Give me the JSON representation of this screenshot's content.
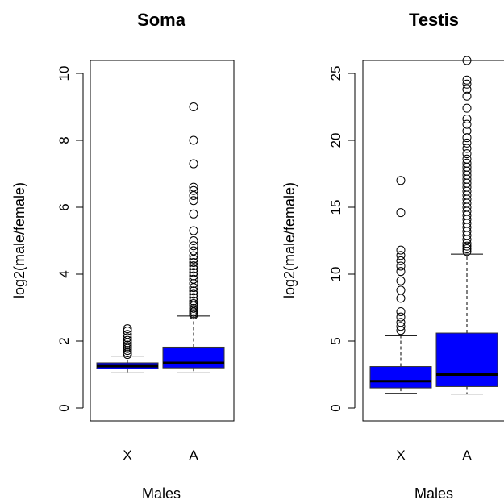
{
  "chart_data": [
    {
      "type": "boxplot",
      "title": "Soma",
      "xlabel": "Males",
      "ylabel": "log2(male/female)",
      "ylim": [
        0,
        10
      ],
      "yticks": [
        0,
        2,
        4,
        6,
        8,
        10
      ],
      "categories": [
        "X",
        "A"
      ],
      "boxes": [
        {
          "category": "X",
          "whisker_low": 1.05,
          "q1": 1.17,
          "median": 1.25,
          "q3": 1.35,
          "whisker_high": 1.55,
          "outliers": [
            1.6,
            1.65,
            1.72,
            1.78,
            1.83,
            1.88,
            1.95,
            2.02,
            2.1,
            2.2,
            2.3,
            2.37
          ]
        },
        {
          "category": "A",
          "whisker_low": 1.05,
          "q1": 1.2,
          "median": 1.35,
          "q3": 1.82,
          "whisker_high": 2.75,
          "outliers": [
            2.78,
            2.82,
            2.87,
            2.92,
            2.98,
            3.05,
            3.12,
            3.2,
            3.3,
            3.4,
            3.5,
            3.6,
            3.72,
            3.85,
            3.95,
            4.05,
            4.15,
            4.25,
            4.35,
            4.45,
            4.55,
            4.7,
            4.85,
            5.0,
            5.3,
            5.8,
            6.2,
            6.35,
            6.5,
            6.6,
            7.3,
            8.0,
            9.0
          ]
        }
      ]
    },
    {
      "type": "boxplot",
      "title": "Testis",
      "xlabel": "Males",
      "ylabel": "log2(male/female)",
      "ylim": [
        0,
        25
      ],
      "yticks": [
        0,
        5,
        10,
        15,
        20,
        25
      ],
      "categories": [
        "X",
        "A"
      ],
      "boxes": [
        {
          "category": "X",
          "whisker_low": 1.1,
          "q1": 1.5,
          "median": 2.0,
          "q3": 3.1,
          "whisker_high": 5.4,
          "outliers": [
            5.8,
            6.1,
            6.4,
            6.8,
            7.2,
            8.2,
            8.8,
            9.5,
            10.2,
            10.6,
            11.0,
            11.4,
            11.8,
            14.6,
            17.0
          ]
        },
        {
          "category": "A",
          "whisker_low": 1.05,
          "q1": 1.6,
          "median": 2.5,
          "q3": 5.6,
          "whisker_high": 11.5,
          "outliers": [
            11.7,
            11.9,
            12.1,
            12.3,
            12.6,
            12.9,
            13.2,
            13.5,
            13.8,
            14.1,
            14.4,
            14.7,
            15.0,
            15.3,
            15.6,
            15.9,
            16.2,
            16.5,
            16.8,
            17.1,
            17.4,
            17.7,
            18.0,
            18.3,
            18.6,
            19.0,
            19.4,
            19.8,
            20.2,
            20.7,
            21.2,
            21.6,
            22.4,
            23.3,
            23.8,
            24.2,
            24.5,
            26.0
          ]
        }
      ]
    }
  ]
}
